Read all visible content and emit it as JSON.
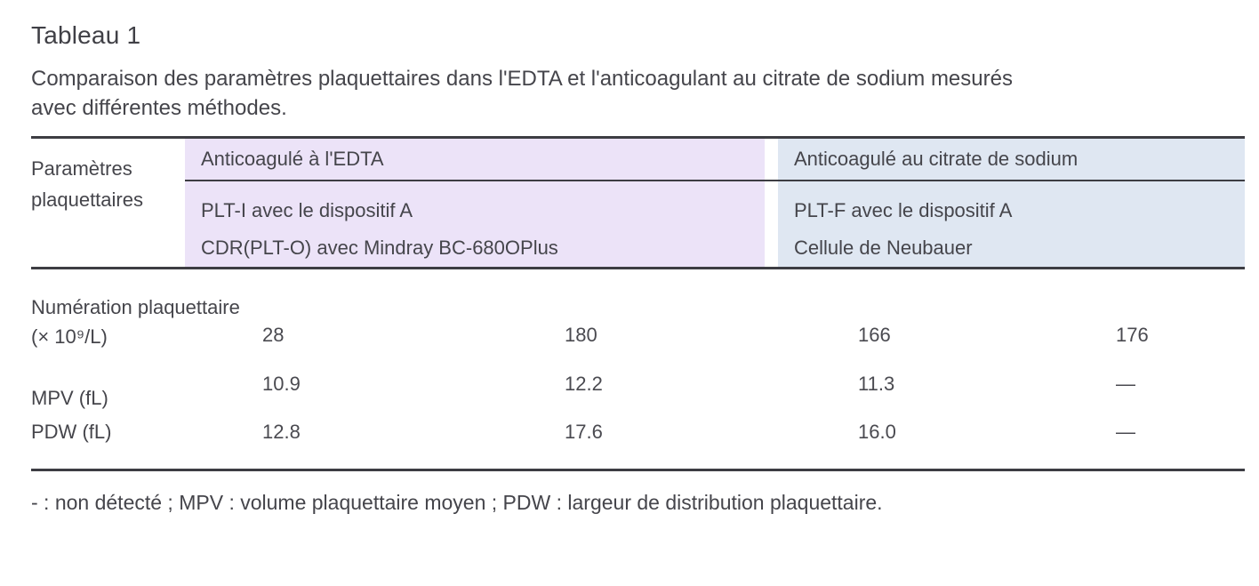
{
  "page": {
    "title": "Tableau 1",
    "subtitle_line1": "Comparaison des paramètres plaquettaires dans l'EDTA et l'anticoagulant au citrate de sodium mesurés",
    "subtitle_line2": "avec différentes méthodes."
  },
  "colors": {
    "edta_bg": "#ece3f8",
    "citrate_bg": "#dfe7f2",
    "rule": "#3d3d43",
    "text": "#45454b"
  },
  "table": {
    "row_header": "Paramètres plaquettaires",
    "groups": [
      {
        "label": "Anticoagulé à l'EDTA",
        "methods": [
          "PLT-I avec le dispositif A",
          "CDR(PLT-O) avec Mindray BC-680OPlus"
        ]
      },
      {
        "label": "Anticoagulé au citrate de sodium",
        "methods": [
          "PLT-F avec le dispositif A",
          "Cellule de Neubauer"
        ]
      }
    ],
    "rows": [
      {
        "label": "Numération plaquettaire (× 10⁹/L)",
        "values": [
          "28",
          "180",
          "166",
          "176"
        ]
      },
      {
        "label": "MPV (fL)",
        "values": [
          "10.9",
          "12.2",
          "11.3",
          "—"
        ]
      },
      {
        "label": "PDW (fL)",
        "values": [
          "12.8",
          "17.6",
          "16.0",
          "—"
        ]
      }
    ],
    "footnote": "- : non détecté ; MPV : volume plaquettaire moyen ; PDW : largeur de distribution plaquettaire."
  },
  "chart_data": {
    "type": "table",
    "title": "Tableau 1 — Comparaison des paramètres plaquettaires dans l'EDTA et l'anticoagulant au citrate de sodium mesurés avec différentes méthodes.",
    "column_groups": [
      "Anticoagulé à l'EDTA",
      "Anticoagulé à l'EDTA",
      "Anticoagulé au citrate de sodium",
      "Anticoagulé au citrate de sodium"
    ],
    "columns": [
      "PLT-I avec le dispositif A",
      "CDR(PLT-O) avec Mindray BC-680OPlus",
      "PLT-F avec le dispositif A",
      "Cellule de Neubauer"
    ],
    "row_labels": [
      "Numération plaquettaire (× 10⁹/L)",
      "MPV (fL)",
      "PDW (fL)"
    ],
    "values": [
      [
        28,
        180,
        166,
        176
      ],
      [
        10.9,
        12.2,
        11.3,
        null
      ],
      [
        12.8,
        17.6,
        16.0,
        null
      ]
    ]
  }
}
